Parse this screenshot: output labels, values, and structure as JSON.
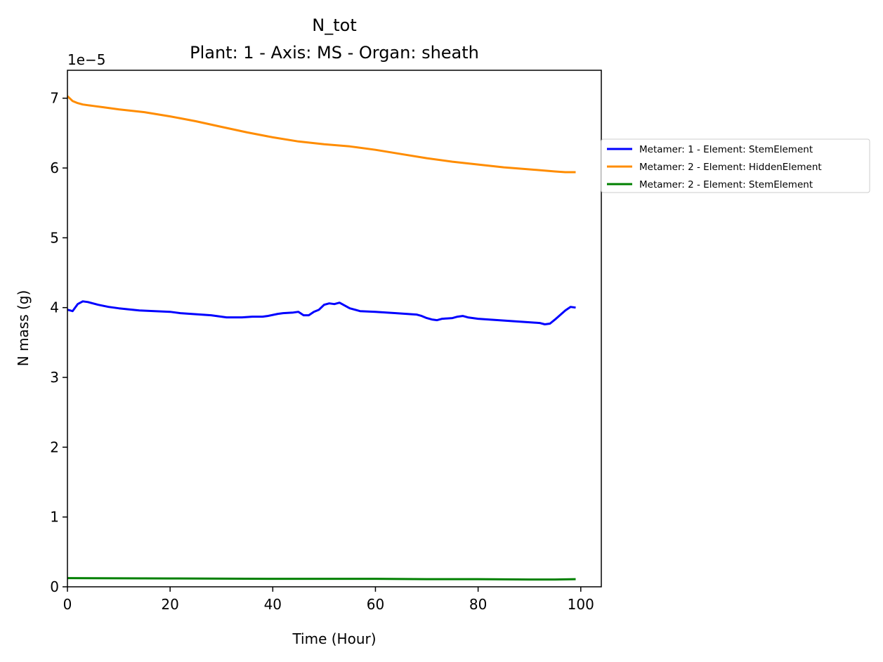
{
  "chart_data": {
    "type": "line",
    "title": "N_tot",
    "subtitle": "Plant: 1 - Axis: MS - Organ: sheath",
    "xlabel": "Time (Hour)",
    "ylabel": "N mass (g)",
    "y_offset_label": "1e−5",
    "xlim": [
      0,
      104
    ],
    "ylim": [
      0,
      7.4
    ],
    "xticks": [
      0,
      20,
      40,
      60,
      80,
      100
    ],
    "xtick_labels": [
      "0",
      "20",
      "40",
      "60",
      "80",
      "100"
    ],
    "yticks": [
      0,
      1,
      2,
      3,
      4,
      5,
      6,
      7
    ],
    "ytick_labels": [
      "0",
      "1",
      "2",
      "3",
      "4",
      "5",
      "6",
      "7"
    ],
    "grid": false,
    "legend_position": "outside right",
    "series": [
      {
        "name": "Metamer: 1 - Element: StemElement",
        "color": "#0000ff",
        "x": [
          0,
          1,
          2,
          3,
          4,
          6,
          8,
          10,
          14,
          20,
          22,
          24,
          26,
          28,
          30,
          31,
          34,
          36,
          38,
          39,
          41,
          42,
          44,
          45,
          46,
          47,
          48,
          49,
          50,
          51,
          52,
          53,
          55,
          57,
          60,
          64,
          66,
          68,
          69,
          70,
          71,
          72,
          73,
          75,
          76,
          77,
          78,
          80,
          84,
          88,
          92,
          93,
          94,
          95,
          97,
          98,
          99
        ],
        "y": [
          3.97,
          3.95,
          4.05,
          4.09,
          4.08,
          4.04,
          4.01,
          3.99,
          3.96,
          3.94,
          3.92,
          3.91,
          3.9,
          3.89,
          3.87,
          3.86,
          3.86,
          3.87,
          3.87,
          3.88,
          3.91,
          3.92,
          3.93,
          3.94,
          3.89,
          3.89,
          3.94,
          3.97,
          4.04,
          4.06,
          4.05,
          4.07,
          3.99,
          3.95,
          3.94,
          3.92,
          3.91,
          3.9,
          3.88,
          3.85,
          3.83,
          3.82,
          3.84,
          3.85,
          3.87,
          3.88,
          3.86,
          3.84,
          3.82,
          3.8,
          3.78,
          3.76,
          3.77,
          3.83,
          3.96,
          4.01,
          4.0
        ]
      },
      {
        "name": "Metamer: 2 - Element: HiddenElement",
        "color": "#ff8c00",
        "x": [
          0,
          1,
          2,
          3,
          5,
          7,
          10,
          15,
          20,
          25,
          30,
          35,
          40,
          45,
          50,
          55,
          60,
          65,
          70,
          75,
          80,
          85,
          90,
          95,
          97,
          99
        ],
        "y": [
          7.03,
          6.96,
          6.93,
          6.91,
          6.89,
          6.87,
          6.84,
          6.8,
          6.74,
          6.67,
          6.59,
          6.51,
          6.44,
          6.38,
          6.34,
          6.31,
          6.26,
          6.2,
          6.14,
          6.09,
          6.05,
          6.01,
          5.98,
          5.95,
          5.94,
          5.94
        ]
      },
      {
        "name": "Metamer: 2 - Element: StemElement",
        "color": "#008000",
        "x": [
          0,
          20,
          40,
          60,
          70,
          80,
          90,
          95,
          99
        ],
        "y": [
          0.125,
          0.12,
          0.115,
          0.115,
          0.11,
          0.11,
          0.105,
          0.105,
          0.11
        ]
      }
    ]
  }
}
